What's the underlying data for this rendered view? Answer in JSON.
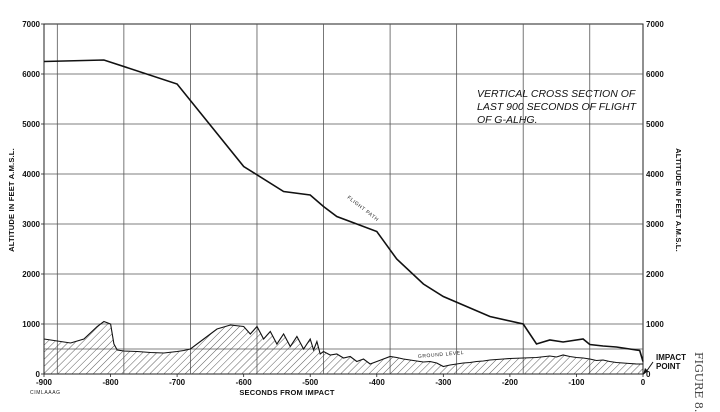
{
  "chart_data": {
    "type": "line",
    "title": "VERTICAL CROSS SECTION OF LAST 900 SECONDS OF FLIGHT OF G-ALHG.",
    "title_lines": [
      "VERTICAL CROSS SECTION OF",
      "LAST 900 SECONDS OF FLIGHT",
      "OF G-ALHG."
    ],
    "xlabel": "SECONDS FROM IMPACT",
    "ylabel": "ALTITUDE IN FEET A.M.S.L.",
    "ylabel_right": "ALTITUDE IN FEET A.M.S.L.",
    "xlim": [
      -900,
      0
    ],
    "ylim": [
      0,
      7000
    ],
    "x_ticks": [
      "-900",
      "-800",
      "-700",
      "-600",
      "-500",
      "-400",
      "-300",
      "-200",
      "-100",
      "0"
    ],
    "x_tick_values": [
      -900,
      -800,
      -700,
      -600,
      -500,
      -400,
      -300,
      -200,
      -100,
      0
    ],
    "y_ticks": [
      "0",
      "1000",
      "2000",
      "3000",
      "4000",
      "5000",
      "6000",
      "7000"
    ],
    "y_tick_values": [
      0,
      1000,
      2000,
      3000,
      4000,
      5000,
      6000,
      7000
    ],
    "grid": true,
    "series": [
      {
        "name": "FLIGHT PATH",
        "style": "line",
        "color": "#111111",
        "x": [
          -900,
          -810,
          -700,
          -600,
          -540,
          -500,
          -480,
          -460,
          -430,
          -400,
          -370,
          -330,
          -300,
          -230,
          -180,
          -160,
          -140,
          -120,
          -90,
          -80,
          -60,
          -40,
          -20,
          -5,
          0
        ],
        "y": [
          6250,
          6280,
          5800,
          4150,
          3650,
          3580,
          3350,
          3150,
          3000,
          2850,
          2300,
          1800,
          1550,
          1150,
          1000,
          600,
          680,
          640,
          700,
          590,
          560,
          540,
          500,
          470,
          250
        ]
      },
      {
        "name": "GROUND LEVEL",
        "style": "hatched-area",
        "color": "#111111",
        "x": [
          -900,
          -860,
          -840,
          -820,
          -810,
          -800,
          -795,
          -790,
          -780,
          -760,
          -740,
          -720,
          -700,
          -690,
          -680,
          -660,
          -640,
          -620,
          -600,
          -590,
          -580,
          -570,
          -560,
          -550,
          -540,
          -530,
          -520,
          -510,
          -500,
          -495,
          -490,
          -485,
          -480,
          -470,
          -460,
          -450,
          -440,
          -430,
          -420,
          -410,
          -400,
          -390,
          -380,
          -370,
          -360,
          -350,
          -340,
          -330,
          -320,
          -310,
          -300,
          -290,
          -280,
          -270,
          -260,
          -250,
          -240,
          -230,
          -220,
          -210,
          -200,
          -180,
          -160,
          -140,
          -130,
          -120,
          -110,
          -100,
          -90,
          -80,
          -70,
          -60,
          -50,
          -40,
          -30,
          -20,
          -10,
          0
        ],
        "y": [
          700,
          620,
          700,
          950,
          1050,
          1000,
          600,
          480,
          460,
          450,
          430,
          420,
          450,
          470,
          500,
          700,
          900,
          980,
          950,
          800,
          950,
          700,
          850,
          600,
          800,
          550,
          750,
          500,
          700,
          480,
          650,
          400,
          450,
          380,
          400,
          320,
          350,
          250,
          300,
          200,
          250,
          300,
          350,
          330,
          300,
          280,
          260,
          240,
          250,
          220,
          150,
          180,
          200,
          220,
          230,
          250,
          260,
          280,
          290,
          300,
          310,
          320,
          330,
          360,
          340,
          380,
          350,
          330,
          320,
          300,
          270,
          280,
          250,
          230,
          220,
          210,
          200,
          200
        ]
      }
    ],
    "annotations": [
      {
        "text": "FLIGHT PATH",
        "x": -460,
        "y": 3300
      },
      {
        "text": "GROUND LEVEL",
        "x": -360,
        "y": 380
      },
      {
        "text": "IMPACT",
        "x": 0,
        "y": 330
      },
      {
        "text": "POINT",
        "x": 0,
        "y": 160
      }
    ],
    "legend": "none"
  },
  "margin_text": {
    "footer_left": "CIMLAAAG",
    "figure": "FIGURE 8."
  }
}
